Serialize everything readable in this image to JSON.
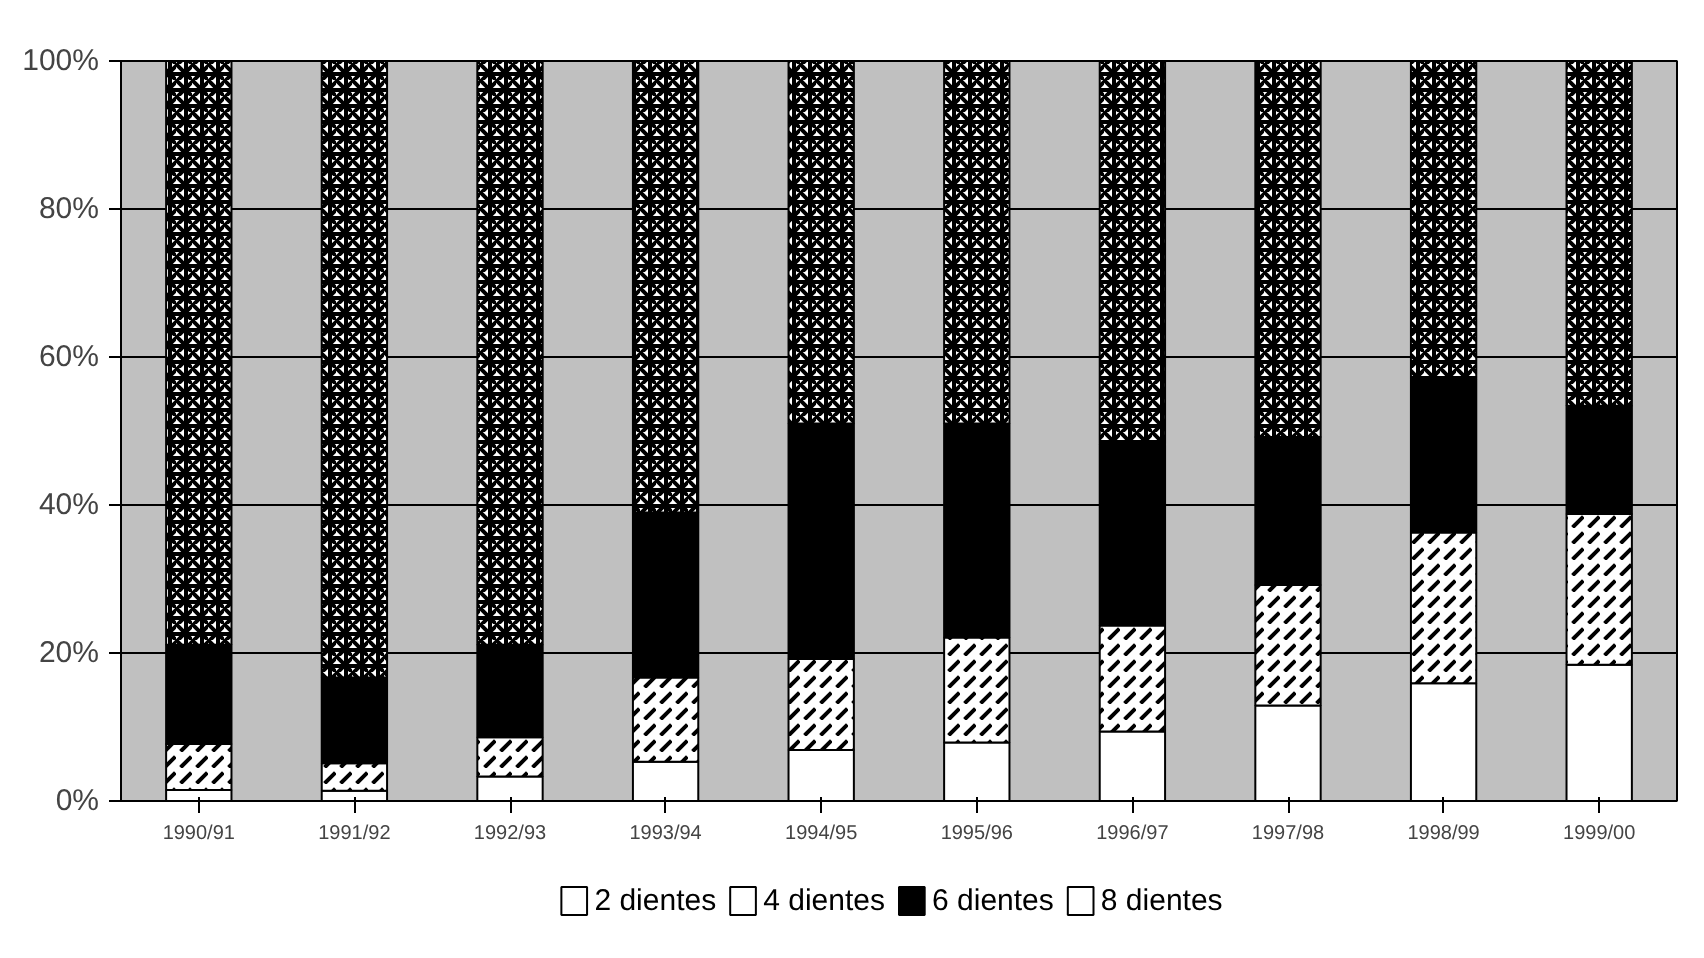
{
  "chart_data": {
    "type": "bar",
    "stacked": true,
    "categories": [
      "1990/91",
      "1991/92",
      "1992/93",
      "1993/94",
      "1994/95",
      "1995/96",
      "1996/97",
      "1997/98",
      "1998/99",
      "1999/00"
    ],
    "series": [
      {
        "name": "2 dientes",
        "color": "#ffffff",
        "values": [
          1.5,
          1.4,
          3.3,
          5.3,
          6.9,
          7.9,
          9.4,
          12.9,
          15.9,
          18.4
        ]
      },
      {
        "name": "4 dientes",
        "color": "#ffffff",
        "values": [
          6.2,
          3.7,
          5.3,
          11.4,
          12.3,
          14.2,
          14.3,
          16.3,
          20.4,
          20.4
        ]
      },
      {
        "name": "6 dientes",
        "color": "#000000",
        "values": [
          13.4,
          11.6,
          12.5,
          22.3,
          31.8,
          28.9,
          24.5,
          20.0,
          20.7,
          14.6
        ]
      },
      {
        "name": "8 dientes",
        "color": "#ffffff",
        "values": [
          78.9,
          83.3,
          78.9,
          61.0,
          49.0,
          49.0,
          51.8,
          50.8,
          43.0,
          46.6
        ]
      }
    ],
    "ylim": [
      0,
      100
    ],
    "yticks": [
      {
        "value": 0,
        "label": "0%"
      },
      {
        "value": 20,
        "label": "20%"
      },
      {
        "value": 40,
        "label": "40%"
      },
      {
        "value": 60,
        "label": "60%"
      },
      {
        "value": 80,
        "label": "80%"
      },
      {
        "value": 100,
        "label": "100%"
      }
    ],
    "grid": "y",
    "legend": "bottom"
  }
}
